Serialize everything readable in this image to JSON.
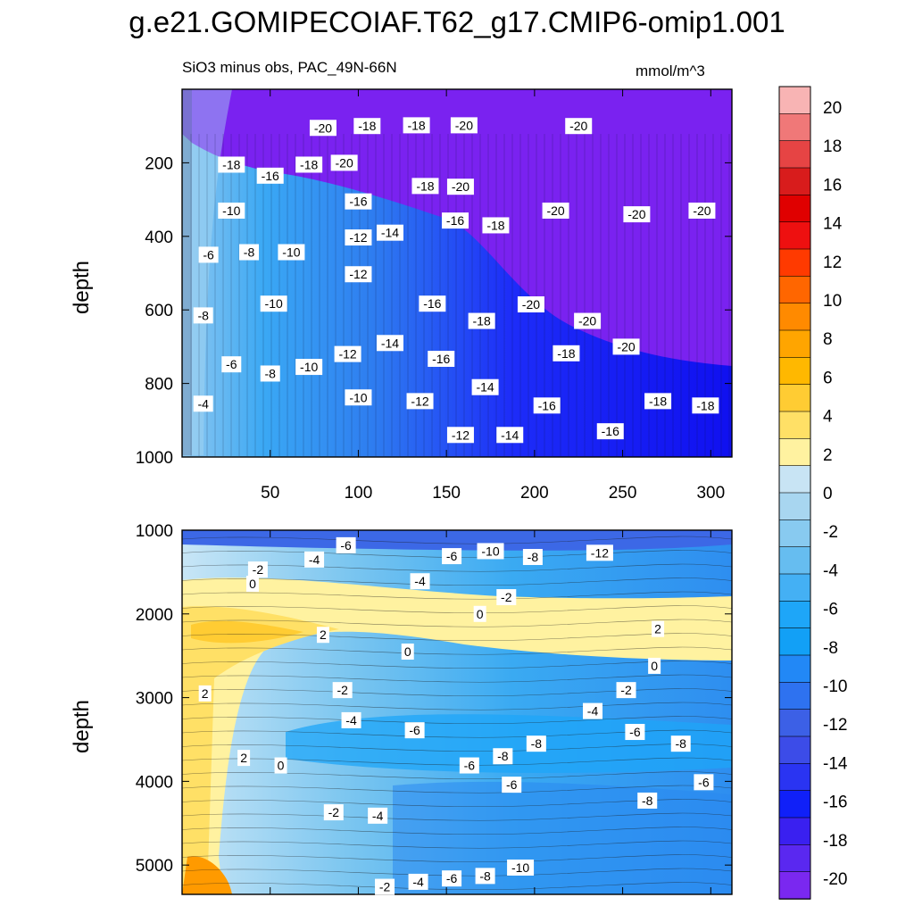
{
  "title": "g.e21.GOMIPECOIAF.T62_g17.CMIP6-omip1.001",
  "subtitle": "SiO3 minus obs, PAC_49N-66N",
  "units": "mmol/m^3",
  "chart_data": [
    {
      "type": "heatmap",
      "panel": "top",
      "xlabel": "",
      "ylabel": "depth",
      "xlim": [
        0,
        312
      ],
      "ylim": [
        1000,
        0
      ],
      "x_ticks": [
        50,
        100,
        150,
        200,
        250,
        300
      ],
      "y_ticks": [
        200,
        400,
        600,
        800,
        1000
      ],
      "contour_labels": [
        {
          "x": 80,
          "y": 105,
          "v": "-20"
        },
        {
          "x": 105,
          "y": 100,
          "v": "-18"
        },
        {
          "x": 133,
          "y": 98,
          "v": "-18"
        },
        {
          "x": 160,
          "y": 98,
          "v": "-20"
        },
        {
          "x": 225,
          "y": 100,
          "v": "-20"
        },
        {
          "x": 28,
          "y": 205,
          "v": "-18"
        },
        {
          "x": 50,
          "y": 235,
          "v": "-16"
        },
        {
          "x": 72,
          "y": 205,
          "v": "-18"
        },
        {
          "x": 92,
          "y": 200,
          "v": "-20"
        },
        {
          "x": 138,
          "y": 263,
          "v": "-18"
        },
        {
          "x": 158,
          "y": 265,
          "v": "-20"
        },
        {
          "x": 100,
          "y": 305,
          "v": "-16"
        },
        {
          "x": 28,
          "y": 330,
          "v": "-10"
        },
        {
          "x": 212,
          "y": 330,
          "v": "-20"
        },
        {
          "x": 258,
          "y": 340,
          "v": "-20"
        },
        {
          "x": 295,
          "y": 330,
          "v": "-20"
        },
        {
          "x": 155,
          "y": 357,
          "v": "-16"
        },
        {
          "x": 178,
          "y": 370,
          "v": "-18"
        },
        {
          "x": 118,
          "y": 390,
          "v": "-14"
        },
        {
          "x": 100,
          "y": 403,
          "v": "-12"
        },
        {
          "x": 38,
          "y": 443,
          "v": "-8"
        },
        {
          "x": 15,
          "y": 450,
          "v": "-6"
        },
        {
          "x": 62,
          "y": 443,
          "v": "-10"
        },
        {
          "x": 100,
          "y": 503,
          "v": "-12"
        },
        {
          "x": 52,
          "y": 583,
          "v": "-10"
        },
        {
          "x": 142,
          "y": 583,
          "v": "-16"
        },
        {
          "x": 198,
          "y": 585,
          "v": "-20"
        },
        {
          "x": 12,
          "y": 615,
          "v": "-8"
        },
        {
          "x": 170,
          "y": 630,
          "v": "-18"
        },
        {
          "x": 230,
          "y": 630,
          "v": "-20"
        },
        {
          "x": 118,
          "y": 690,
          "v": "-14"
        },
        {
          "x": 94,
          "y": 720,
          "v": "-12"
        },
        {
          "x": 50,
          "y": 773,
          "v": "-8"
        },
        {
          "x": 72,
          "y": 755,
          "v": "-10"
        },
        {
          "x": 28,
          "y": 748,
          "v": "-6"
        },
        {
          "x": 147,
          "y": 733,
          "v": "-16"
        },
        {
          "x": 218,
          "y": 718,
          "v": "-18"
        },
        {
          "x": 252,
          "y": 700,
          "v": "-20"
        },
        {
          "x": 172,
          "y": 810,
          "v": "-14"
        },
        {
          "x": 100,
          "y": 838,
          "v": "-10"
        },
        {
          "x": 12,
          "y": 855,
          "v": "-4"
        },
        {
          "x": 135,
          "y": 848,
          "v": "-12"
        },
        {
          "x": 207,
          "y": 860,
          "v": "-16"
        },
        {
          "x": 270,
          "y": 848,
          "v": "-18"
        },
        {
          "x": 297,
          "y": 860,
          "v": "-18"
        },
        {
          "x": 158,
          "y": 940,
          "v": "-12"
        },
        {
          "x": 186,
          "y": 940,
          "v": "-14"
        },
        {
          "x": 243,
          "y": 930,
          "v": "-16"
        }
      ]
    },
    {
      "type": "heatmap",
      "panel": "bottom",
      "xlabel": "",
      "ylabel": "depth",
      "xlim": [
        0,
        312
      ],
      "ylim": [
        5350,
        1000
      ],
      "y_ticks": [
        1000,
        2000,
        3000,
        4000,
        5000
      ],
      "contour_labels": [
        {
          "x": 93,
          "y": 1180,
          "v": "-6"
        },
        {
          "x": 153,
          "y": 1310,
          "v": "-6"
        },
        {
          "x": 175,
          "y": 1250,
          "v": "-10"
        },
        {
          "x": 199,
          "y": 1320,
          "v": "-8"
        },
        {
          "x": 237,
          "y": 1270,
          "v": "-12"
        },
        {
          "x": 75,
          "y": 1350,
          "v": "-4"
        },
        {
          "x": 43,
          "y": 1470,
          "v": "-2"
        },
        {
          "x": 135,
          "y": 1610,
          "v": "-4"
        },
        {
          "x": 40,
          "y": 1640,
          "v": "0"
        },
        {
          "x": 184,
          "y": 1800,
          "v": "-2"
        },
        {
          "x": 169,
          "y": 2000,
          "v": "0"
        },
        {
          "x": 270,
          "y": 2180,
          "v": "2"
        },
        {
          "x": 80,
          "y": 2250,
          "v": "2"
        },
        {
          "x": 128,
          "y": 2450,
          "v": "0"
        },
        {
          "x": 268,
          "y": 2620,
          "v": "0"
        },
        {
          "x": 13,
          "y": 2950,
          "v": "2"
        },
        {
          "x": 91,
          "y": 2910,
          "v": "-2"
        },
        {
          "x": 252,
          "y": 2910,
          "v": "-2"
        },
        {
          "x": 233,
          "y": 3160,
          "v": "-4"
        },
        {
          "x": 96,
          "y": 3270,
          "v": "-4"
        },
        {
          "x": 132,
          "y": 3390,
          "v": "-6"
        },
        {
          "x": 257,
          "y": 3410,
          "v": "-6"
        },
        {
          "x": 283,
          "y": 3550,
          "v": "-8"
        },
        {
          "x": 201,
          "y": 3550,
          "v": "-8"
        },
        {
          "x": 182,
          "y": 3700,
          "v": "-8"
        },
        {
          "x": 35,
          "y": 3720,
          "v": "2"
        },
        {
          "x": 56,
          "y": 3810,
          "v": "0"
        },
        {
          "x": 163,
          "y": 3810,
          "v": "-6"
        },
        {
          "x": 187,
          "y": 4040,
          "v": "-6"
        },
        {
          "x": 296,
          "y": 4010,
          "v": "-6"
        },
        {
          "x": 264,
          "y": 4230,
          "v": "-8"
        },
        {
          "x": 86,
          "y": 4370,
          "v": "-2"
        },
        {
          "x": 111,
          "y": 4410,
          "v": "-4"
        },
        {
          "x": 192,
          "y": 5030,
          "v": "-10"
        },
        {
          "x": 172,
          "y": 5130,
          "v": "-8"
        },
        {
          "x": 153,
          "y": 5160,
          "v": "-6"
        },
        {
          "x": 134,
          "y": 5200,
          "v": "-4"
        },
        {
          "x": 115,
          "y": 5260,
          "v": "-2"
        }
      ]
    }
  ],
  "colorbar": {
    "labels": [
      "20",
      "18",
      "16",
      "14",
      "12",
      "10",
      "8",
      "6",
      "4",
      "2",
      "0",
      "-2",
      "-4",
      "-6",
      "-8",
      "-10",
      "-12",
      "-14",
      "-16",
      "-18",
      "-20"
    ],
    "colors": [
      "#f8b4b4",
      "#f07878",
      "#e64444",
      "#d81c1c",
      "#e00000",
      "#ee1010",
      "#ff3a00",
      "#ff6600",
      "#ff8a00",
      "#ffa500",
      "#ffb800",
      "#ffcc33",
      "#ffe066",
      "#fff2a0",
      "#c8e4f4",
      "#a8d6f0",
      "#88caf0",
      "#66bdf0",
      "#44b0f4",
      "#1ea6f8",
      "#12a0f6",
      "#2288f6",
      "#2e72f0",
      "#3c60e6",
      "#3c4ce8",
      "#2a34f2",
      "#1020f8",
      "#3a20f0",
      "#5a28f0",
      "#7a28f0"
    ]
  }
}
